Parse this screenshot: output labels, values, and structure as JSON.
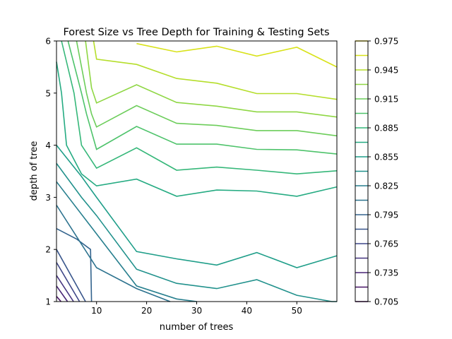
{
  "chart_data": {
    "type": "contour",
    "title": "Forest Size vs Tree Depth for Training & Testing Sets",
    "xlabel": "number of trees",
    "ylabel": "depth of tree",
    "xlim": [
      2,
      58
    ],
    "ylim": [
      1,
      6
    ],
    "x_ticks": [
      "10",
      "20",
      "30",
      "40",
      "50"
    ],
    "y_ticks": [
      "1",
      "2",
      "3",
      "4",
      "5",
      "6"
    ],
    "colorbar": {
      "min": 0.705,
      "max": 0.975,
      "tick_labels": [
        "0.705",
        "0.735",
        "0.765",
        "0.795",
        "0.825",
        "0.855",
        "0.885",
        "0.915",
        "0.945",
        "0.975"
      ],
      "level_step": 0.015
    },
    "contours": [
      {
        "level": 0.705,
        "color": "#440154",
        "points": [
          [
            2,
            1.0
          ],
          [
            2,
            1.0
          ]
        ]
      },
      {
        "level": 0.72,
        "color": "#471365",
        "points": [
          [
            2.9,
            1.0
          ],
          [
            2,
            1.1
          ]
        ]
      },
      {
        "level": 0.735,
        "color": "#482475",
        "points": [
          [
            4.2,
            1.0
          ],
          [
            2,
            1.3
          ]
        ]
      },
      {
        "level": 0.75,
        "color": "#45347f",
        "points": [
          [
            5.4,
            1.0
          ],
          [
            2,
            1.5
          ]
        ]
      },
      {
        "level": 0.765,
        "color": "#3f4788",
        "points": [
          [
            6.6,
            1.0
          ],
          [
            2,
            1.75
          ]
        ]
      },
      {
        "level": 0.78,
        "color": "#39568c",
        "points": [
          [
            7.8,
            1.0
          ],
          [
            2,
            2.0
          ]
        ]
      },
      {
        "level": 0.795,
        "color": "#33638d",
        "points": [
          [
            9.0,
            1.0
          ],
          [
            8.8,
            2.0
          ],
          [
            6.0,
            2.2
          ],
          [
            2,
            2.4
          ]
        ]
      },
      {
        "level": 0.81,
        "color": "#2c728e",
        "points": [
          [
            24.7,
            1.0
          ],
          [
            18,
            1.25
          ],
          [
            10,
            1.65
          ],
          [
            7,
            2.1
          ],
          [
            2,
            2.85
          ]
        ]
      },
      {
        "level": 0.825,
        "color": "#277f8e",
        "points": [
          [
            2,
            3.3
          ],
          [
            10,
            2.3
          ],
          [
            18,
            1.3
          ],
          [
            26,
            1.05
          ],
          [
            30,
            1.0
          ]
        ]
      },
      {
        "level": 0.84,
        "color": "#21918c",
        "points": [
          [
            2,
            3.65
          ],
          [
            7,
            3.0
          ],
          [
            10,
            2.65
          ],
          [
            18,
            1.62
          ],
          [
            26,
            1.35
          ],
          [
            34,
            1.25
          ],
          [
            42,
            1.42
          ],
          [
            50,
            1.12
          ],
          [
            57,
            1.0
          ],
          [
            58,
            1.0
          ]
        ]
      },
      {
        "level": 0.855,
        "color": "#1f9e89",
        "points": [
          [
            2,
            4.0
          ],
          [
            7,
            3.4
          ],
          [
            10,
            3.0
          ],
          [
            18,
            1.96
          ],
          [
            26,
            1.82
          ],
          [
            34,
            1.7
          ],
          [
            42,
            1.94
          ],
          [
            50,
            1.65
          ],
          [
            58,
            1.88
          ]
        ]
      },
      {
        "level": 0.87,
        "color": "#25ab82",
        "points": [
          [
            2,
            5.6
          ],
          [
            3,
            5.0
          ],
          [
            4,
            4.0
          ],
          [
            7,
            3.45
          ],
          [
            10,
            3.22
          ],
          [
            18,
            3.35
          ],
          [
            26,
            3.02
          ],
          [
            34,
            3.14
          ],
          [
            42,
            3.12
          ],
          [
            50,
            3.02
          ],
          [
            58,
            3.2
          ]
        ]
      },
      {
        "level": 0.885,
        "color": "#35b779",
        "points": [
          [
            3,
            6.0
          ],
          [
            4,
            5.6
          ],
          [
            5.5,
            5.0
          ],
          [
            7,
            4.0
          ],
          [
            10,
            3.56
          ],
          [
            18,
            3.95
          ],
          [
            26,
            3.52
          ],
          [
            34,
            3.58
          ],
          [
            42,
            3.52
          ],
          [
            50,
            3.45
          ],
          [
            58,
            3.51
          ]
        ]
      },
      {
        "level": 0.9,
        "color": "#4ec36b",
        "points": [
          [
            4.3,
            6.0
          ],
          [
            7,
            5.0
          ],
          [
            8,
            4.6
          ],
          [
            10,
            3.92
          ],
          [
            18,
            4.36
          ],
          [
            26,
            4.02
          ],
          [
            34,
            4.02
          ],
          [
            42,
            3.92
          ],
          [
            50,
            3.91
          ],
          [
            58,
            3.83
          ]
        ]
      },
      {
        "level": 0.915,
        "color": "#6ccd5a",
        "points": [
          [
            6.0,
            6.0
          ],
          [
            8,
            5.0
          ],
          [
            9,
            4.6
          ],
          [
            10,
            4.35
          ],
          [
            18,
            4.76
          ],
          [
            26,
            4.42
          ],
          [
            34,
            4.38
          ],
          [
            42,
            4.28
          ],
          [
            50,
            4.28
          ],
          [
            58,
            4.18
          ]
        ]
      },
      {
        "level": 0.93,
        "color": "#8fd744",
        "points": [
          [
            7.8,
            6.0
          ],
          [
            9,
            5.1
          ],
          [
            10,
            4.81
          ],
          [
            18,
            5.16
          ],
          [
            26,
            4.82
          ],
          [
            34,
            4.75
          ],
          [
            42,
            4.64
          ],
          [
            50,
            4.64
          ],
          [
            58,
            4.54
          ]
        ]
      },
      {
        "level": 0.945,
        "color": "#b5de2b",
        "points": [
          [
            9.4,
            6.0
          ],
          [
            10,
            5.65
          ],
          [
            18,
            5.55
          ],
          [
            26,
            5.28
          ],
          [
            34,
            5.19
          ],
          [
            42,
            4.99
          ],
          [
            50,
            4.99
          ],
          [
            58,
            4.88
          ]
        ]
      },
      {
        "level": 0.96,
        "color": "#d8e219",
        "points": [
          [
            18,
            5.95
          ],
          [
            26,
            5.79
          ],
          [
            34,
            5.9
          ],
          [
            42,
            5.71
          ],
          [
            50,
            5.88
          ],
          [
            58,
            5.5
          ]
        ]
      },
      {
        "level": 0.975,
        "color": "#fde725",
        "points": [
          [
            2,
            6.0
          ],
          [
            2,
            6.0
          ]
        ]
      }
    ]
  }
}
